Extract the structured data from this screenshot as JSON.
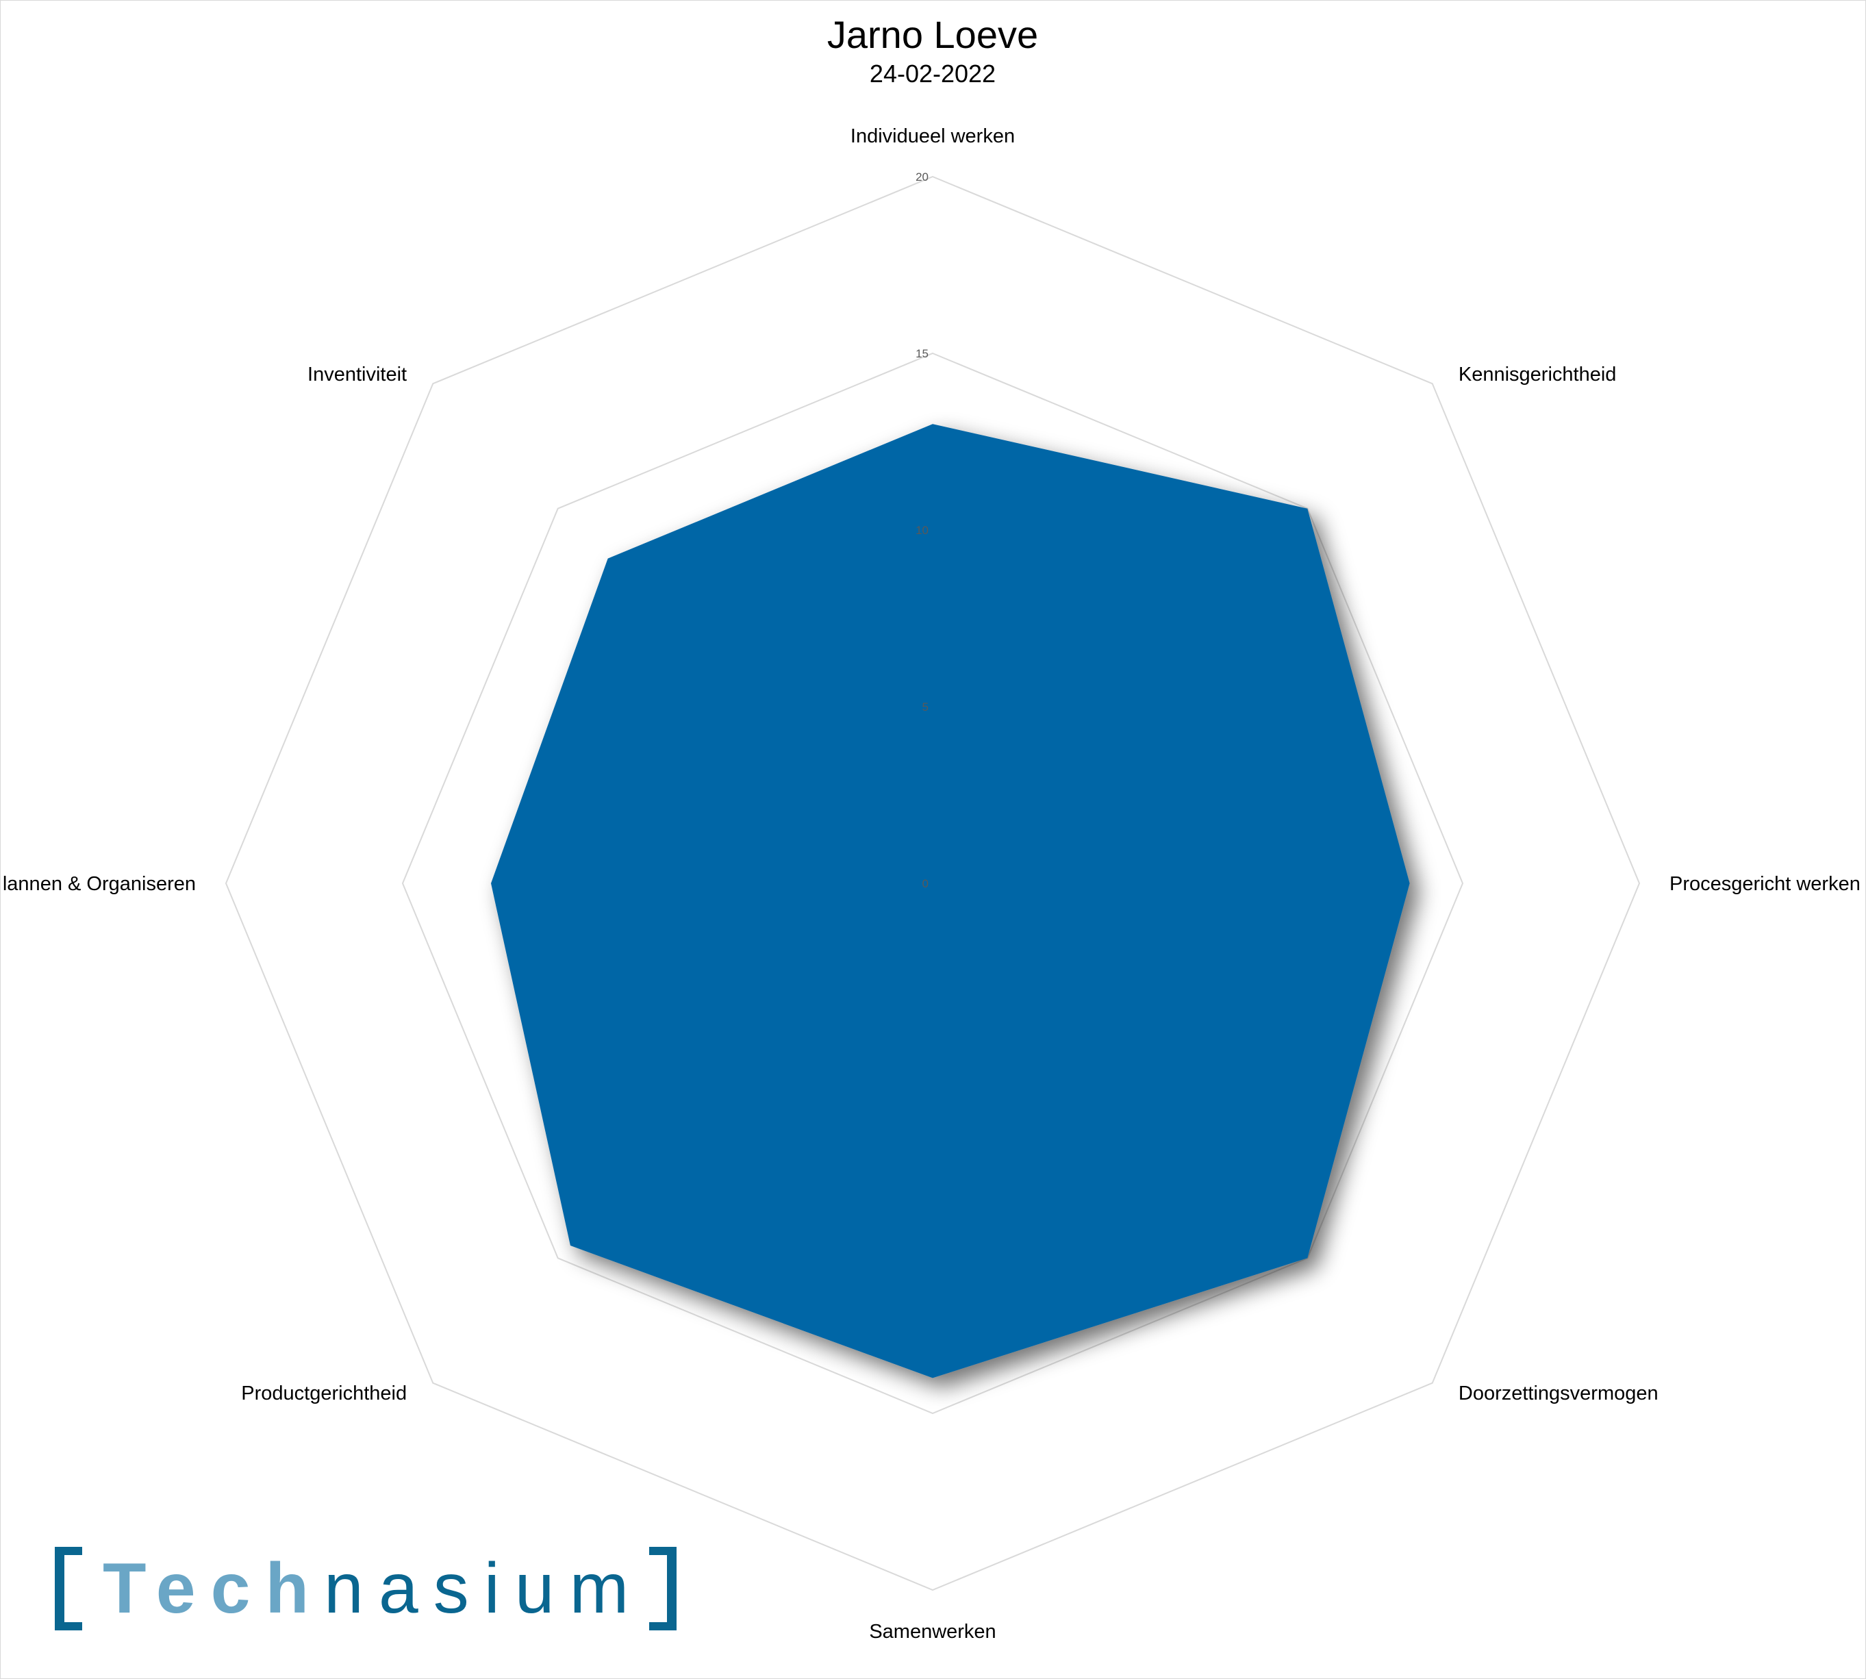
{
  "chart_data": {
    "type": "radar",
    "title": "Jarno Loeve",
    "subtitle": "24-02-2022",
    "axes": [
      "Individueel werken",
      "Kennisgerichtheid",
      "Procesgericht werken",
      "Doorzettingsvermogen",
      "Samenwerken",
      "Productgerichtheid",
      "lannen & Organiseren",
      "Inventiviteit"
    ],
    "series": [
      {
        "values": [
          13,
          15,
          13.5,
          15,
          14,
          14.5,
          12.5,
          13
        ],
        "color": "#0066a6"
      }
    ],
    "rmin": 0,
    "rmax": 20,
    "ticks": [
      "0",
      "5",
      "10",
      "15",
      "20"
    ],
    "tick_values": [
      0,
      5,
      10,
      15,
      20
    ],
    "grid": true,
    "legend": "none"
  },
  "logo": {
    "part1": "Tech",
    "part2": "nasium"
  }
}
